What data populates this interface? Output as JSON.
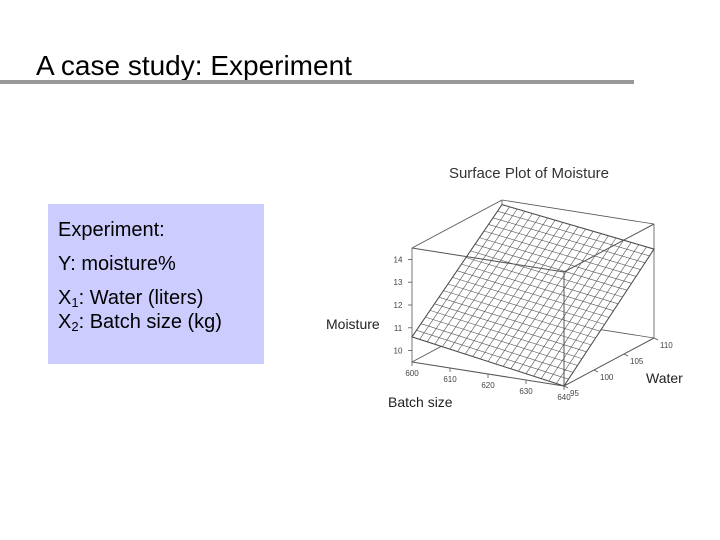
{
  "slide": {
    "title": "A case study: Experiment"
  },
  "info_box": {
    "heading": "Experiment:",
    "y_line": "Y: moisture%",
    "x1_prefix": "X",
    "x1_sub": "1",
    "x1_text": ": Water (liters)",
    "x2_prefix": "X",
    "x2_sub": "2",
    "x2_text": ": Batch size (kg)",
    "background_color": "#ccccff"
  },
  "chart_data": {
    "type": "surface",
    "title": "Surface Plot of Moisture",
    "zlabel": "Moisture",
    "xlabel": "Batch size",
    "ylabel": "Water",
    "z_ticks": [
      "10",
      "11",
      "12",
      "13",
      "14"
    ],
    "x_ticks": [
      "600",
      "610",
      "620",
      "630",
      "640"
    ],
    "y_ticks": [
      "95",
      "100",
      "105",
      "110"
    ],
    "zlim": [
      9.5,
      14.5
    ],
    "xlim": [
      600,
      640
    ],
    "ylim": [
      95,
      110
    ],
    "grid_lines_per_axis": 20,
    "corner_values": {
      "batch600_water95": 10.6,
      "batch640_water95": 9.5,
      "batch600_water110": 14.3,
      "batch640_water110": 13.4
    },
    "box": true
  }
}
